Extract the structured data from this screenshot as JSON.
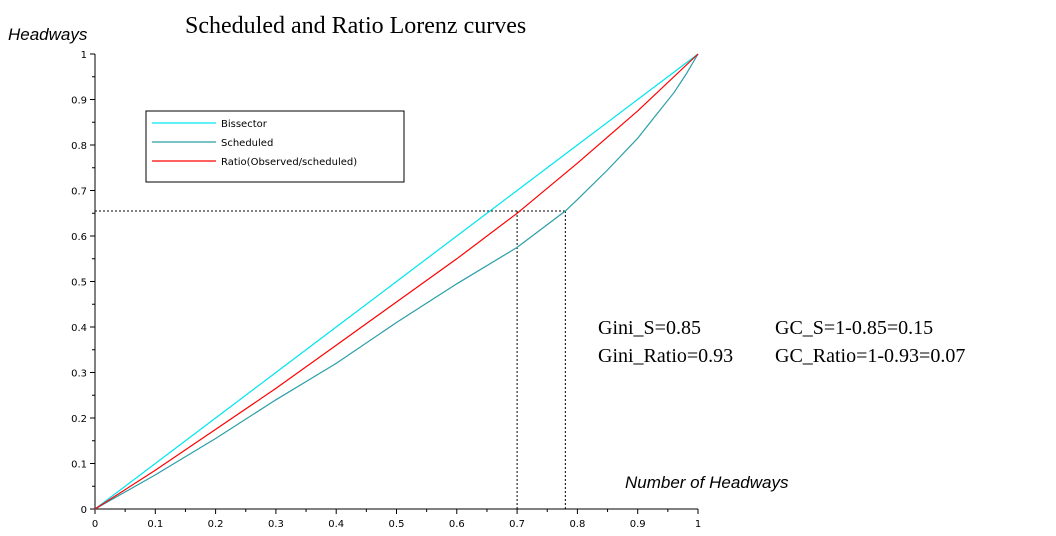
{
  "chart_data": {
    "type": "line",
    "title": "Scheduled and Ratio Lorenz curves",
    "ylabel": "Headways",
    "xlabel": "Number of Headways",
    "xlim": [
      0,
      1
    ],
    "ylim": [
      0,
      1
    ],
    "x_ticks": [
      "0",
      "0.1",
      "0.2",
      "0.3",
      "0.4",
      "0.5",
      "0.6",
      "0.7",
      "0.8",
      "0.9",
      "1"
    ],
    "y_ticks": [
      "0",
      "0.1",
      "0.2",
      "0.3",
      "0.4",
      "0.5",
      "0.6",
      "0.7",
      "0.8",
      "0.9",
      "1"
    ],
    "legend_position": "top-left",
    "grid": false,
    "series": [
      {
        "name": "Bissector",
        "color": "#00e5ee",
        "x": [
          0,
          0.1,
          0.2,
          0.3,
          0.4,
          0.5,
          0.6,
          0.7,
          0.8,
          0.9,
          1
        ],
        "y": [
          0,
          0.1,
          0.2,
          0.3,
          0.4,
          0.5,
          0.6,
          0.7,
          0.8,
          0.9,
          1
        ]
      },
      {
        "name": "Scheduled",
        "color": "#2a9ea8",
        "x": [
          0,
          0.1,
          0.2,
          0.3,
          0.4,
          0.5,
          0.6,
          0.7,
          0.75,
          0.78,
          0.8,
          0.85,
          0.9,
          0.93,
          0.96,
          0.98,
          1
        ],
        "y": [
          0,
          0.075,
          0.155,
          0.24,
          0.32,
          0.41,
          0.495,
          0.575,
          0.625,
          0.655,
          0.68,
          0.745,
          0.815,
          0.865,
          0.915,
          0.955,
          1
        ]
      },
      {
        "name": "Ratio(Observed/scheduled)",
        "color": "#ff0000",
        "x": [
          0,
          0.1,
          0.2,
          0.3,
          0.4,
          0.5,
          0.6,
          0.7,
          0.8,
          0.9,
          1
        ],
        "y": [
          0,
          0.085,
          0.175,
          0.265,
          0.36,
          0.455,
          0.55,
          0.65,
          0.76,
          0.875,
          1
        ]
      }
    ],
    "reference_lines": {
      "y": 0.655,
      "x_ratio": 0.7,
      "x_scheduled": 0.78
    },
    "annotations": [
      "Gini_S=0.85",
      "GC_S=1-0.85=0.15",
      "Gini_Ratio=0.93",
      "GC_Ratio=1-0.93=0.07"
    ]
  }
}
